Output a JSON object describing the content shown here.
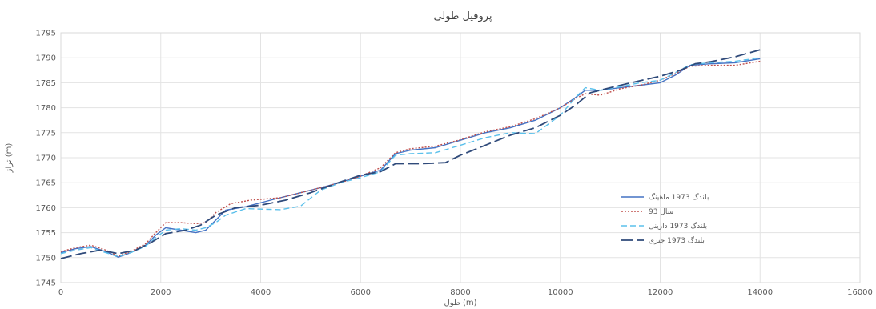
{
  "chart_data": {
    "type": "line",
    "title": "پروفیل طولی",
    "xlabel": "طول (m)",
    "ylabel": "تراز (m)",
    "xlim": [
      0,
      16000
    ],
    "ylim": [
      1745,
      1795
    ],
    "xticks": [
      0,
      2000,
      4000,
      6000,
      8000,
      10000,
      12000,
      14000,
      16000
    ],
    "yticks": [
      1745,
      1750,
      1755,
      1760,
      1765,
      1770,
      1775,
      1780,
      1785,
      1790,
      1795
    ],
    "grid": true,
    "legend_position": "right",
    "series": [
      {
        "name": "بلندگ 1973 ماهینگ",
        "color": "#4472c4",
        "dash": "solid",
        "points": [
          [
            0,
            1751.0
          ],
          [
            300,
            1751.8
          ],
          [
            600,
            1752.2
          ],
          [
            900,
            1751.2
          ],
          [
            1150,
            1750.1
          ],
          [
            1400,
            1751.0
          ],
          [
            1700,
            1752.5
          ],
          [
            1900,
            1754.5
          ],
          [
            2100,
            1756.0
          ],
          [
            2400,
            1755.5
          ],
          [
            2700,
            1755.0
          ],
          [
            2900,
            1755.5
          ],
          [
            3100,
            1757.5
          ],
          [
            3300,
            1759.5
          ],
          [
            3700,
            1760.2
          ],
          [
            4200,
            1761.5
          ],
          [
            4800,
            1763.0
          ],
          [
            5400,
            1764.5
          ],
          [
            6000,
            1766.3
          ],
          [
            6400,
            1767.5
          ],
          [
            6700,
            1770.8
          ],
          [
            7000,
            1771.5
          ],
          [
            7500,
            1772.0
          ],
          [
            8000,
            1773.5
          ],
          [
            8500,
            1775.0
          ],
          [
            9000,
            1776.0
          ],
          [
            9500,
            1777.5
          ],
          [
            10000,
            1780.0
          ],
          [
            10300,
            1782.0
          ],
          [
            10500,
            1783.5
          ],
          [
            10800,
            1783.5
          ],
          [
            11200,
            1784.0
          ],
          [
            11600,
            1784.5
          ],
          [
            12000,
            1785.0
          ],
          [
            12300,
            1786.5
          ],
          [
            12600,
            1788.5
          ],
          [
            13000,
            1788.8
          ],
          [
            13500,
            1789.0
          ],
          [
            14000,
            1789.8
          ]
        ]
      },
      {
        "name": "سال 93",
        "color": "#c0504d",
        "dash": "dotted",
        "points": [
          [
            0,
            1751.2
          ],
          [
            300,
            1752.0
          ],
          [
            600,
            1752.5
          ],
          [
            900,
            1751.5
          ],
          [
            1150,
            1750.3
          ],
          [
            1400,
            1751.2
          ],
          [
            1700,
            1752.8
          ],
          [
            1900,
            1755.0
          ],
          [
            2100,
            1757.0
          ],
          [
            2400,
            1757.0
          ],
          [
            2700,
            1756.8
          ],
          [
            2900,
            1757.0
          ],
          [
            3100,
            1759.0
          ],
          [
            3400,
            1760.8
          ],
          [
            3800,
            1761.5
          ],
          [
            4400,
            1762.0
          ],
          [
            5000,
            1763.5
          ],
          [
            5600,
            1765.0
          ],
          [
            6000,
            1766.3
          ],
          [
            6400,
            1768.0
          ],
          [
            6700,
            1771.0
          ],
          [
            7000,
            1771.8
          ],
          [
            7500,
            1772.3
          ],
          [
            8000,
            1773.6
          ],
          [
            8500,
            1775.2
          ],
          [
            9000,
            1776.2
          ],
          [
            9500,
            1777.8
          ],
          [
            10000,
            1780.0
          ],
          [
            10300,
            1781.8
          ],
          [
            10500,
            1782.8
          ],
          [
            10800,
            1782.5
          ],
          [
            11200,
            1783.8
          ],
          [
            11600,
            1784.5
          ],
          [
            12000,
            1785.5
          ],
          [
            12300,
            1786.8
          ],
          [
            12600,
            1788.3
          ],
          [
            13000,
            1788.5
          ],
          [
            13500,
            1788.5
          ],
          [
            14000,
            1789.3
          ]
        ]
      },
      {
        "name": "بلندگ 1973 دارینی",
        "color": "#5bc0eb",
        "dash": "short-dash",
        "points": [
          [
            0,
            1750.8
          ],
          [
            300,
            1751.5
          ],
          [
            600,
            1752.0
          ],
          [
            900,
            1751.0
          ],
          [
            1150,
            1750.2
          ],
          [
            1400,
            1751.0
          ],
          [
            1700,
            1752.3
          ],
          [
            1900,
            1754.0
          ],
          [
            2100,
            1755.5
          ],
          [
            2400,
            1755.8
          ],
          [
            2700,
            1755.5
          ],
          [
            2900,
            1756.0
          ],
          [
            3100,
            1757.0
          ],
          [
            3300,
            1758.5
          ],
          [
            3700,
            1759.8
          ],
          [
            4400,
            1759.6
          ],
          [
            4800,
            1760.3
          ],
          [
            5200,
            1763.5
          ],
          [
            5600,
            1765.0
          ],
          [
            6000,
            1766.0
          ],
          [
            6400,
            1767.2
          ],
          [
            6700,
            1770.5
          ],
          [
            7000,
            1770.8
          ],
          [
            7500,
            1771.0
          ],
          [
            8000,
            1772.5
          ],
          [
            8500,
            1774.0
          ],
          [
            9000,
            1775.0
          ],
          [
            9500,
            1774.8
          ],
          [
            10000,
            1778.5
          ],
          [
            10300,
            1782.0
          ],
          [
            10500,
            1784.0
          ],
          [
            10800,
            1783.5
          ],
          [
            11200,
            1784.2
          ],
          [
            11600,
            1785.0
          ],
          [
            12000,
            1785.5
          ],
          [
            12300,
            1787.0
          ],
          [
            12600,
            1788.6
          ],
          [
            13000,
            1789.0
          ],
          [
            13500,
            1789.3
          ],
          [
            14000,
            1790.0
          ]
        ]
      },
      {
        "name": "بلندگ 1973 جنری",
        "color": "#2f4a7a",
        "dash": "long-dash",
        "points": [
          [
            0,
            1749.8
          ],
          [
            400,
            1750.8
          ],
          [
            800,
            1751.5
          ],
          [
            1150,
            1750.8
          ],
          [
            1500,
            1751.5
          ],
          [
            1800,
            1753.0
          ],
          [
            2100,
            1754.8
          ],
          [
            2500,
            1755.5
          ],
          [
            2800,
            1756.5
          ],
          [
            3100,
            1758.5
          ],
          [
            3500,
            1760.0
          ],
          [
            4000,
            1760.5
          ],
          [
            4500,
            1761.5
          ],
          [
            5000,
            1763.0
          ],
          [
            5500,
            1764.8
          ],
          [
            6000,
            1766.5
          ],
          [
            6400,
            1767.2
          ],
          [
            6700,
            1768.8
          ],
          [
            7200,
            1768.8
          ],
          [
            7700,
            1769.0
          ],
          [
            8000,
            1770.5
          ],
          [
            8500,
            1772.5
          ],
          [
            9000,
            1774.5
          ],
          [
            9500,
            1776.0
          ],
          [
            10000,
            1778.5
          ],
          [
            10300,
            1780.5
          ],
          [
            10600,
            1783.0
          ],
          [
            11000,
            1784.0
          ],
          [
            11500,
            1785.2
          ],
          [
            12000,
            1786.3
          ],
          [
            12400,
            1787.5
          ],
          [
            12700,
            1788.8
          ],
          [
            13000,
            1789.2
          ],
          [
            13500,
            1790.2
          ],
          [
            14000,
            1791.6
          ]
        ]
      }
    ]
  }
}
